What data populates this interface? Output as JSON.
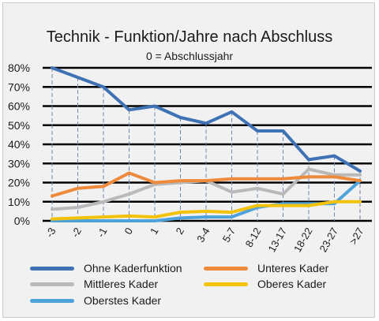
{
  "chart_data": {
    "type": "line",
    "title": "Technik - Funktion/Jahre nach Abschluss",
    "subtitle": "0 = Abschlussjahr",
    "categories": [
      "-3",
      "-2",
      "-1",
      "0",
      "1",
      "2",
      "3-4",
      "5-7",
      "8-12",
      "13-17",
      "18-22",
      "23-27",
      ">27"
    ],
    "y_tick_labels": [
      "0%",
      "10%",
      "20%",
      "30%",
      "40%",
      "50%",
      "60%",
      "70%",
      "80%"
    ],
    "ylim": [
      0,
      80
    ],
    "grid": "horizontal",
    "legend_position": "bottom",
    "series": [
      {
        "name": "Ohne Kaderfunktion",
        "color": "#3f72b5",
        "values": [
          80,
          75,
          70,
          58,
          60,
          54,
          51,
          57,
          47,
          47,
          32,
          34,
          26
        ]
      },
      {
        "name": "Unteres Kader",
        "color": "#ee8a3c",
        "values": [
          13,
          17,
          18,
          25,
          20,
          21,
          21,
          22,
          22,
          22,
          23,
          23,
          21
        ]
      },
      {
        "name": "Mittleres Kader",
        "color": "#b9b9b9",
        "values": [
          6,
          7,
          10,
          14,
          19,
          20,
          21,
          15,
          17,
          14,
          27,
          24,
          24
        ]
      },
      {
        "name": "Oberes Kader",
        "color": "#f3c20a",
        "values": [
          1,
          1.5,
          2,
          2.5,
          2,
          4.5,
          5,
          4.5,
          8,
          8,
          8,
          10,
          10
        ]
      },
      {
        "name": "Oberstes Kader",
        "color": "#4fa3dc",
        "values": [
          0,
          0,
          0,
          0,
          0,
          1.5,
          2,
          2,
          7,
          9,
          9,
          9,
          21
        ]
      }
    ]
  }
}
